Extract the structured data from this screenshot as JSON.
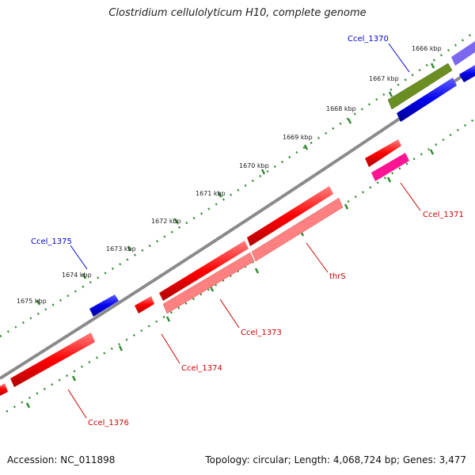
{
  "title": "Clostridium cellulolyticum H10, complete genome",
  "accession_label": "Accession: NC_011898",
  "topology_label": "Topology: circular; Length: 4,068,724 bp; Genes: 3,477",
  "ticks": [
    "1666 kbp",
    "1667 kbp",
    "1668 kbp",
    "1669 kbp",
    "1670 kbp",
    "1671 kbp",
    "1672 kbp",
    "1673 kbp",
    "1674 kbp",
    "1675 kbp"
  ],
  "gene_labels": {
    "ccel_1370": "Ccel_1370",
    "ccel_1371": "Ccel_1371",
    "ccel_1373": "Ccel_1373",
    "thrs": "thrS",
    "ccel_1374": "Ccel_1374",
    "ccel_1375": "Ccel_1375",
    "ccel_1376": "Ccel_1376"
  },
  "colors": {
    "backbone": "#888888",
    "tick_dots": "#2e8b2e",
    "forward_label": "#0000cc",
    "reverse_label": "#cc0000",
    "red_gene": "#ff0000",
    "pink_gene": "#ff8080",
    "magenta_gene": "#ff1493",
    "blue_gene": "#0000ee",
    "olive_gene": "#6b8e23",
    "lavender_gene": "#7b68ee"
  }
}
